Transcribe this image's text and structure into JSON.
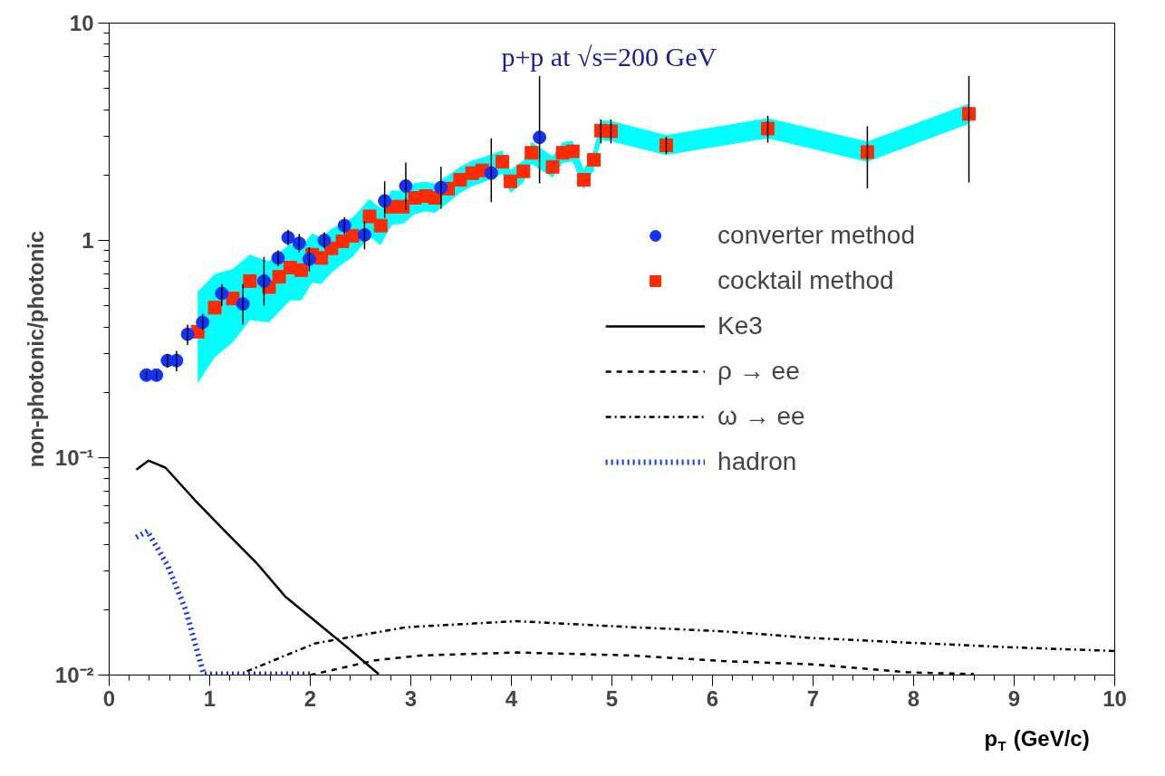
{
  "chart_data": {
    "type": "scatter",
    "xlabel": "p$_{T}$ (GeV/c)",
    "ylabel": "non-photonic/photonic",
    "annotations": [
      "p+p at √s=200 GeV"
    ],
    "xlim": [
      0,
      10
    ],
    "xticks": [
      0,
      1,
      2,
      3,
      4,
      5,
      6,
      7,
      8,
      9,
      10
    ],
    "ylim": [
      0.01,
      10
    ],
    "yticks": [
      {
        "value": 0.01,
        "label": "10⁻²"
      },
      {
        "value": 0.1,
        "label": "10⁻¹"
      },
      1,
      10
    ],
    "log": "y",
    "grid": false,
    "legend": "right",
    "series": [
      {
        "name": "converter method",
        "marker": "circle",
        "color": "#1133ff",
        "x": [
          0.37,
          0.47,
          0.58,
          0.67,
          0.78,
          0.93,
          1.12,
          1.33,
          1.54,
          1.68,
          1.78,
          1.89,
          1.99,
          2.14,
          2.34,
          2.54,
          2.74,
          2.95,
          3.3,
          3.8,
          4.28
        ],
        "values": [
          0.24,
          0.24,
          0.28,
          0.28,
          0.37,
          0.42,
          0.57,
          0.51,
          0.65,
          0.83,
          1.03,
          0.97,
          0.82,
          1.0,
          1.17,
          1.06,
          1.52,
          1.78,
          1.75,
          2.04,
          2.98
        ],
        "errors": [
          [
            0.23,
            0.25
          ],
          [
            0.23,
            0.25
          ],
          [
            0.26,
            0.3
          ],
          [
            0.25,
            0.31
          ],
          [
            0.33,
            0.41
          ],
          [
            0.39,
            0.46
          ],
          [
            0.5,
            0.63
          ],
          [
            0.41,
            0.63
          ],
          [
            0.5,
            0.84
          ],
          [
            0.76,
            0.9
          ],
          [
            0.95,
            1.12
          ],
          [
            0.88,
            1.07
          ],
          [
            0.72,
            0.93
          ],
          [
            0.92,
            1.09
          ],
          [
            1.07,
            1.28
          ],
          [
            0.91,
            1.22
          ],
          [
            1.27,
            1.87
          ],
          [
            1.38,
            2.28
          ],
          [
            1.4,
            2.18
          ],
          [
            1.5,
            2.95
          ],
          [
            1.83,
            5.7
          ]
        ]
      },
      {
        "name": "cocktail method",
        "marker": "square",
        "color": "#ff2a00",
        "x": [
          0.88,
          1.05,
          1.23,
          1.4,
          1.59,
          1.69,
          1.8,
          1.91,
          2.02,
          2.11,
          2.21,
          2.32,
          2.42,
          2.59,
          2.7,
          2.81,
          2.92,
          3.04,
          3.15,
          3.24,
          3.37,
          3.49,
          3.61,
          3.71,
          3.91,
          3.99,
          4.12,
          4.2,
          4.41,
          4.51,
          4.61,
          4.72,
          4.82,
          4.89,
          4.99,
          5.54,
          6.55,
          7.54,
          8.55
        ],
        "values": [
          0.38,
          0.49,
          0.54,
          0.65,
          0.61,
          0.68,
          0.75,
          0.73,
          0.86,
          0.83,
          0.92,
          0.99,
          1.05,
          1.29,
          1.17,
          1.43,
          1.43,
          1.57,
          1.6,
          1.57,
          1.73,
          1.9,
          2.04,
          2.1,
          2.3,
          1.87,
          2.08,
          2.53,
          2.18,
          2.53,
          2.57,
          1.9,
          2.35,
          3.2,
          3.18,
          2.74,
          3.27,
          2.55,
          3.82
        ],
        "lower": [
          0.22,
          0.29,
          0.34,
          0.43,
          0.42,
          0.47,
          0.53,
          0.53,
          0.64,
          0.63,
          0.71,
          0.78,
          0.84,
          1.04,
          0.95,
          1.18,
          1.19,
          1.32,
          1.36,
          1.34,
          1.49,
          1.65,
          1.78,
          1.84,
          2.03,
          1.65,
          1.85,
          2.25,
          1.95,
          2.27,
          2.31,
          1.71,
          2.11,
          2.88,
          2.86,
          2.47,
          2.95,
          2.3,
          3.44
        ],
        "upper": [
          0.58,
          0.7,
          0.74,
          0.86,
          0.8,
          0.88,
          0.96,
          0.93,
          1.08,
          1.03,
          1.13,
          1.2,
          1.27,
          1.55,
          1.4,
          1.7,
          1.69,
          1.84,
          1.86,
          1.82,
          1.99,
          2.18,
          2.33,
          2.4,
          2.6,
          2.1,
          2.34,
          2.84,
          2.44,
          2.83,
          2.87,
          2.12,
          2.62,
          3.57,
          3.55,
          3.05,
          3.65,
          2.85,
          4.26
        ],
        "errors": [
          null,
          null,
          null,
          null,
          null,
          null,
          null,
          null,
          null,
          null,
          null,
          null,
          null,
          null,
          null,
          null,
          null,
          null,
          null,
          null,
          null,
          null,
          null,
          null,
          null,
          null,
          null,
          null,
          null,
          null,
          null,
          null,
          null,
          [
            2.8,
            3.6
          ],
          [
            2.8,
            3.6
          ],
          [
            2.5,
            3.0
          ],
          [
            2.82,
            3.75
          ],
          [
            1.73,
            3.35
          ],
          [
            1.85,
            5.7
          ]
        ]
      },
      {
        "name": "Ke3",
        "type": "line",
        "line_style": "solid",
        "color": "#000000",
        "x": [
          0.27,
          0.39,
          0.56,
          0.85,
          1.15,
          1.46,
          1.75,
          2.05,
          2.36,
          2.68
        ],
        "values": [
          0.088,
          0.097,
          0.09,
          0.064,
          0.046,
          0.033,
          0.023,
          0.0177,
          0.0135,
          0.0101
        ]
      },
      {
        "name": "ρ → ee",
        "type": "line",
        "line_style": "dashed",
        "color": "#000000",
        "x": [
          2.0,
          2.65,
          3.1,
          4.05,
          5.2,
          6.1,
          7.0,
          7.93,
          8.6
        ],
        "values": [
          0.01,
          0.0117,
          0.0123,
          0.0127,
          0.0123,
          0.0116,
          0.0112,
          0.0103,
          0.0101
        ]
      },
      {
        "name": "ω → ee",
        "type": "line",
        "line_style": "dashdot",
        "color": "#000000",
        "x": [
          1.37,
          2.05,
          2.95,
          4.05,
          5.2,
          6.1,
          7.0,
          7.93,
          9.0,
          10.0
        ],
        "values": [
          0.0104,
          0.014,
          0.0166,
          0.0177,
          0.0166,
          0.0159,
          0.0148,
          0.0141,
          0.0134,
          0.0129
        ]
      },
      {
        "name": "hadron",
        "type": "line",
        "line_style": "dotted",
        "color": "#1133ff",
        "x": [
          0.27,
          0.38,
          0.58,
          0.76,
          0.94,
          1.0,
          2.0
        ],
        "values": [
          0.043,
          0.046,
          0.032,
          0.02,
          0.0101,
          0.0101,
          0.0101
        ]
      }
    ]
  }
}
